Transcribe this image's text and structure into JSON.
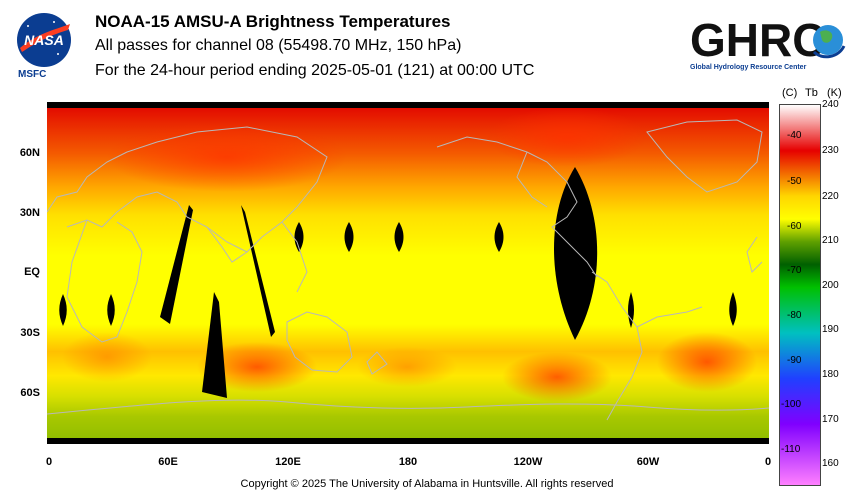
{
  "header": {
    "title": "NOAA-15 AMSU-A Brightness Temperatures",
    "subtitle": "All passes for channel 08 (55498.70 MHz, 150 hPa)",
    "period": "For the 24-hour period ending 2025-05-01 (121) at 00:00 UTC"
  },
  "logos": {
    "nasa_text": "NASA",
    "msfc_text": "MSFC",
    "ghrc_text": "GHRC",
    "ghrc_subtitle": "Global Hydrology Resource Center"
  },
  "map": {
    "lat_labels": [
      "60N",
      "30N",
      "EQ",
      "30S",
      "60S"
    ],
    "lon_labels": [
      "0",
      "60E",
      "120E",
      "180",
      "120W",
      "60W",
      "0"
    ]
  },
  "colorbar": {
    "unit_c": "(C)",
    "unit_tb": "Tb",
    "unit_k": "(K)",
    "celsius_ticks": [
      "-40",
      "-50",
      "-60",
      "-70",
      "-80",
      "-90",
      "-100",
      "-110"
    ],
    "kelvin_ticks": [
      "240",
      "230",
      "220",
      "210",
      "200",
      "190",
      "180",
      "170",
      "160"
    ],
    "colors": {
      "k240": "#ffffff",
      "k230": "#e60000",
      "k220": "#ffd600",
      "k215": "#ffff00",
      "k210": "#5fa000",
      "k205": "#006000",
      "k200": "#00c000",
      "k190": "#00c0c0",
      "k180": "#2040ff",
      "k170": "#8000ff",
      "k160": "#ff80ff"
    }
  },
  "footer": {
    "copyright": "Copyright © 2025 The University of Alabama in Huntsville.  All rights reserved"
  }
}
